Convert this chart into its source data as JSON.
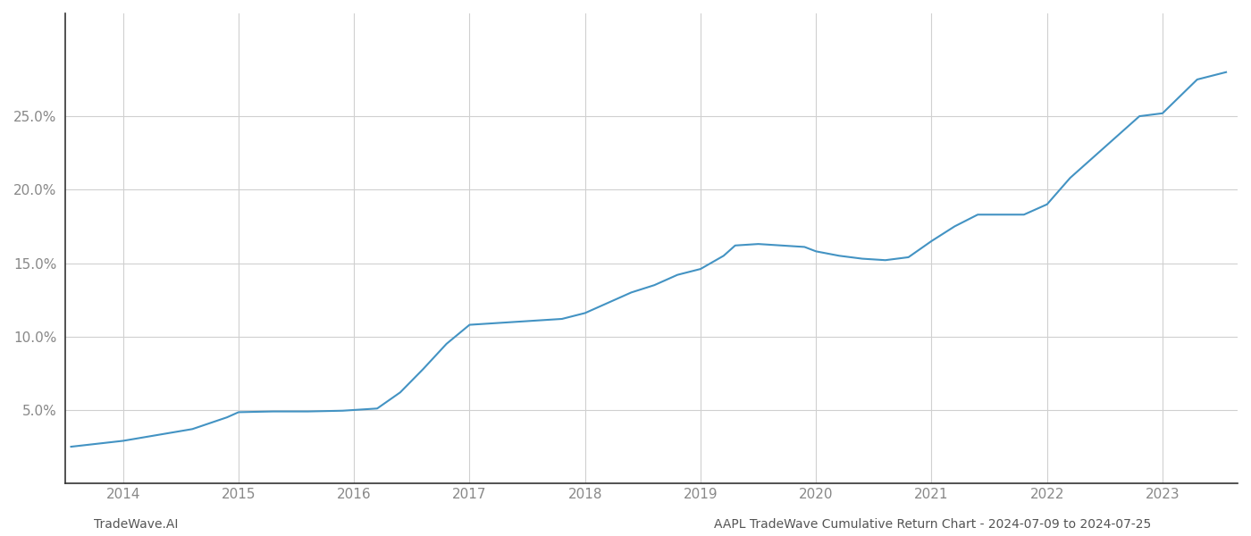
{
  "title": "",
  "footer_left": "TradeWave.AI",
  "footer_right": "AAPL TradeWave Cumulative Return Chart - 2024-07-09 to 2024-07-25",
  "line_color": "#4393c3",
  "background_color": "#ffffff",
  "grid_color": "#d0d0d0",
  "x_years": [
    2014,
    2015,
    2016,
    2017,
    2018,
    2019,
    2020,
    2021,
    2022,
    2023
  ],
  "x_data": [
    2013.55,
    2014.0,
    2014.3,
    2014.6,
    2014.9,
    2015.0,
    2015.3,
    2015.6,
    2015.9,
    2016.0,
    2016.1,
    2016.2,
    2016.4,
    2016.6,
    2016.8,
    2017.0,
    2017.2,
    2017.4,
    2017.6,
    2017.8,
    2018.0,
    2018.2,
    2018.4,
    2018.6,
    2018.8,
    2019.0,
    2019.2,
    2019.3,
    2019.5,
    2019.7,
    2019.9,
    2020.0,
    2020.2,
    2020.4,
    2020.6,
    2020.8,
    2021.0,
    2021.2,
    2021.4,
    2021.6,
    2021.8,
    2022.0,
    2022.2,
    2022.8,
    2023.0,
    2023.3,
    2023.55
  ],
  "y_data": [
    2.5,
    2.9,
    3.3,
    3.7,
    4.5,
    4.85,
    4.9,
    4.9,
    4.95,
    5.0,
    5.05,
    5.1,
    6.2,
    7.8,
    9.5,
    10.8,
    10.9,
    11.0,
    11.1,
    11.2,
    11.6,
    12.3,
    13.0,
    13.5,
    14.2,
    14.6,
    15.5,
    16.2,
    16.3,
    16.2,
    16.1,
    15.8,
    15.5,
    15.3,
    15.2,
    15.4,
    16.5,
    17.5,
    18.3,
    18.3,
    18.3,
    19.0,
    20.8,
    25.0,
    25.2,
    27.5,
    28.0
  ],
  "ylim": [
    0,
    32
  ],
  "yticks": [
    5.0,
    10.0,
    15.0,
    20.0,
    25.0
  ],
  "xlim": [
    2013.5,
    2023.65
  ],
  "line_width": 1.5,
  "footer_fontsize": 10,
  "tick_fontsize": 11,
  "tick_color": "#888888",
  "spine_color": "#333333"
}
